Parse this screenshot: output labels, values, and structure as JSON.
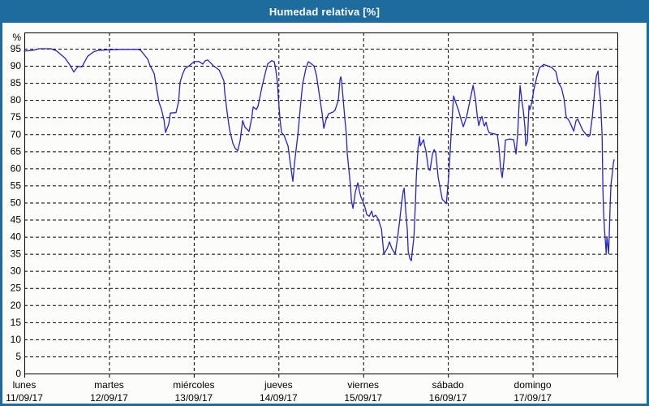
{
  "window": {
    "title": "Humedad relativa [%]"
  },
  "colors": {
    "frame": "#1e6b9e",
    "title_text": "#ffffff",
    "background": "#fcfdfb",
    "plot_background": "#fefefe",
    "plot_border": "#000000",
    "grid": "#000000",
    "axis_text": "#000000",
    "line": "#2323cc"
  },
  "chart_data": {
    "type": "line",
    "title": "Humedad relativa [%]",
    "ylabel": "%",
    "y_unit_label": "%",
    "ylim": [
      0,
      99.7
    ],
    "xlim_days": [
      0,
      7
    ],
    "grid": "dashed",
    "legend_position": "none",
    "y_ticks": [
      0,
      5,
      10,
      15,
      20,
      25,
      30,
      35,
      40,
      45,
      50,
      55,
      60,
      65,
      70,
      75,
      80,
      85,
      90,
      95
    ],
    "x_ticks": [
      {
        "day": "lunes",
        "date": "11/09/17"
      },
      {
        "day": "martes",
        "date": "12/09/17"
      },
      {
        "day": "miércoles",
        "date": "13/09/17"
      },
      {
        "day": "jueves",
        "date": "14/09/17"
      },
      {
        "day": "viernes",
        "date": "15/09/17"
      },
      {
        "day": "sábado",
        "date": "16/09/17"
      },
      {
        "day": "domingo",
        "date": "17/09/17"
      }
    ],
    "series": [
      {
        "name": "Humedad relativa",
        "color": "#2323cc",
        "points": [
          [
            0.0,
            94.3
          ],
          [
            0.096,
            94.5
          ],
          [
            0.172,
            95.0
          ],
          [
            0.316,
            95.0
          ],
          [
            0.383,
            94.3
          ],
          [
            0.479,
            92.3
          ],
          [
            0.536,
            90.3
          ],
          [
            0.584,
            88.2
          ],
          [
            0.632,
            89.8
          ],
          [
            0.68,
            89.7
          ],
          [
            0.747,
            92.8
          ],
          [
            0.824,
            94.2
          ],
          [
            0.872,
            94.5
          ],
          [
            0.996,
            94.7
          ],
          [
            1.149,
            94.8
          ],
          [
            1.341,
            94.8
          ],
          [
            1.37,
            94.6
          ],
          [
            1.456,
            92.0
          ],
          [
            1.485,
            90.0
          ],
          [
            1.533,
            87.7
          ],
          [
            1.561,
            83.5
          ],
          [
            1.59,
            79.3
          ],
          [
            1.619,
            77.2
          ],
          [
            1.648,
            74.2
          ],
          [
            1.667,
            70.5
          ],
          [
            1.705,
            73.0
          ],
          [
            1.724,
            76.2
          ],
          [
            1.791,
            76.3
          ],
          [
            1.82,
            79.5
          ],
          [
            1.839,
            85.2
          ],
          [
            1.868,
            87.6
          ],
          [
            1.897,
            89.2
          ],
          [
            1.944,
            90.0
          ],
          [
            2.002,
            91.2
          ],
          [
            2.059,
            91.3
          ],
          [
            2.107,
            90.5
          ],
          [
            2.136,
            91.5
          ],
          [
            2.165,
            91.7
          ],
          [
            2.232,
            90.0
          ],
          [
            2.299,
            88.8
          ],
          [
            2.328,
            87.2
          ],
          [
            2.356,
            85.6
          ],
          [
            2.366,
            82.0
          ],
          [
            2.395,
            76.2
          ],
          [
            2.423,
            71.3
          ],
          [
            2.462,
            67.3
          ],
          [
            2.49,
            65.8
          ],
          [
            2.519,
            65.2
          ],
          [
            2.548,
            68.2
          ],
          [
            2.577,
            74.0
          ],
          [
            2.605,
            72.0
          ],
          [
            2.634,
            71.3
          ],
          [
            2.653,
            70.8
          ],
          [
            2.682,
            74.5
          ],
          [
            2.701,
            78.0
          ],
          [
            2.739,
            77.2
          ],
          [
            2.759,
            78.2
          ],
          [
            2.807,
            84.0
          ],
          [
            2.845,
            88.0
          ],
          [
            2.874,
            90.6
          ],
          [
            2.921,
            91.5
          ],
          [
            2.95,
            91.2
          ],
          [
            2.969,
            88.8
          ],
          [
            2.989,
            84.8
          ],
          [
            2.998,
            80.8
          ],
          [
            3.017,
            74.5
          ],
          [
            3.036,
            70.5
          ],
          [
            3.065,
            69.7
          ],
          [
            3.113,
            66.5
          ],
          [
            3.142,
            61.0
          ],
          [
            3.17,
            56.2
          ],
          [
            3.19,
            61.7
          ],
          [
            3.228,
            69.7
          ],
          [
            3.257,
            77.6
          ],
          [
            3.285,
            84.7
          ],
          [
            3.324,
            89.2
          ],
          [
            3.352,
            91.2
          ],
          [
            3.381,
            90.7
          ],
          [
            3.419,
            90.0
          ],
          [
            3.448,
            87.2
          ],
          [
            3.477,
            82.4
          ],
          [
            3.515,
            76.0
          ],
          [
            3.534,
            71.7
          ],
          [
            3.563,
            74.4
          ],
          [
            3.592,
            76.0
          ],
          [
            3.64,
            76.4
          ],
          [
            3.668,
            77.0
          ],
          [
            3.707,
            80.0
          ],
          [
            3.726,
            86.0
          ],
          [
            3.736,
            86.8
          ],
          [
            3.745,
            85.5
          ],
          [
            3.764,
            80.0
          ],
          [
            3.783,
            74.5
          ],
          [
            3.802,
            69.7
          ],
          [
            3.812,
            64.2
          ],
          [
            3.831,
            59.5
          ],
          [
            3.85,
            54.7
          ],
          [
            3.86,
            50.8
          ],
          [
            3.879,
            48.3
          ],
          [
            3.908,
            53.2
          ],
          [
            3.937,
            55.8
          ],
          [
            3.956,
            53.2
          ],
          [
            3.975,
            51.5
          ],
          [
            4.004,
            50.0
          ],
          [
            4.023,
            48.4
          ],
          [
            4.042,
            46.5
          ],
          [
            4.071,
            46.0
          ],
          [
            4.1,
            47.5
          ],
          [
            4.119,
            45.8
          ],
          [
            4.148,
            46.3
          ],
          [
            4.176,
            45.2
          ],
          [
            4.215,
            42.3
          ],
          [
            4.243,
            35.0
          ],
          [
            4.282,
            36.5
          ],
          [
            4.31,
            38.5
          ],
          [
            4.339,
            36.5
          ],
          [
            4.377,
            35.0
          ],
          [
            4.406,
            39.7
          ],
          [
            4.425,
            43.6
          ],
          [
            4.454,
            50.0
          ],
          [
            4.473,
            53.4
          ],
          [
            4.483,
            54.2
          ],
          [
            4.502,
            47.6
          ],
          [
            4.521,
            42.0
          ],
          [
            4.531,
            35.7
          ],
          [
            4.55,
            33.7
          ],
          [
            4.569,
            33.0
          ],
          [
            4.579,
            35.7
          ],
          [
            4.598,
            39.7
          ],
          [
            4.617,
            50.0
          ],
          [
            4.626,
            57.0
          ],
          [
            4.646,
            65.8
          ],
          [
            4.665,
            69.3
          ],
          [
            4.674,
            66.6
          ],
          [
            4.713,
            68.4
          ],
          [
            4.722,
            67.0
          ],
          [
            4.741,
            65.0
          ],
          [
            4.77,
            59.8
          ],
          [
            4.789,
            59.4
          ],
          [
            4.818,
            64.2
          ],
          [
            4.837,
            65.5
          ],
          [
            4.856,
            64.6
          ],
          [
            4.885,
            57.4
          ],
          [
            4.933,
            51.0
          ],
          [
            4.962,
            50.2
          ],
          [
            4.981,
            49.7
          ],
          [
            5.01,
            58.0
          ],
          [
            5.038,
            70.0
          ],
          [
            5.067,
            81.2
          ],
          [
            5.096,
            79.0
          ],
          [
            5.125,
            77.0
          ],
          [
            5.153,
            74.5
          ],
          [
            5.182,
            72.2
          ],
          [
            5.22,
            75.0
          ],
          [
            5.249,
            78.5
          ],
          [
            5.278,
            82.0
          ],
          [
            5.297,
            84.3
          ],
          [
            5.326,
            80.0
          ],
          [
            5.345,
            75.5
          ],
          [
            5.364,
            72.5
          ],
          [
            5.383,
            74.2
          ],
          [
            5.402,
            75.2
          ],
          [
            5.421,
            73.0
          ],
          [
            5.431,
            72.4
          ],
          [
            5.45,
            73.5
          ],
          [
            5.469,
            71.5
          ],
          [
            5.488,
            70.4
          ],
          [
            5.526,
            70.2
          ],
          [
            5.565,
            70.0
          ],
          [
            5.584,
            69.8
          ],
          [
            5.603,
            66.0
          ],
          [
            5.622,
            60.0
          ],
          [
            5.641,
            57.3
          ],
          [
            5.66,
            62.0
          ],
          [
            5.679,
            68.3
          ],
          [
            5.727,
            68.6
          ],
          [
            5.775,
            68.4
          ],
          [
            5.804,
            64.2
          ],
          [
            5.823,
            70.0
          ],
          [
            5.842,
            80.0
          ],
          [
            5.852,
            84.2
          ],
          [
            5.871,
            80.2
          ],
          [
            5.89,
            76.8
          ],
          [
            5.909,
            72.0
          ],
          [
            5.919,
            66.6
          ],
          [
            5.938,
            68.0
          ],
          [
            5.957,
            78.4
          ],
          [
            5.967,
            77.2
          ],
          [
            5.986,
            78.8
          ],
          [
            6.015,
            83.1
          ],
          [
            6.053,
            87.1
          ],
          [
            6.082,
            89.5
          ],
          [
            6.111,
            90.0
          ],
          [
            6.13,
            90.4
          ],
          [
            6.178,
            90.0
          ],
          [
            6.226,
            89.5
          ],
          [
            6.274,
            88.3
          ],
          [
            6.303,
            85.1
          ],
          [
            6.341,
            83.5
          ],
          [
            6.37,
            80.4
          ],
          [
            6.398,
            74.8
          ],
          [
            6.418,
            74.4
          ],
          [
            6.437,
            73.6
          ],
          [
            6.466,
            72.0
          ],
          [
            6.485,
            70.9
          ],
          [
            6.513,
            74.0
          ],
          [
            6.533,
            74.4
          ],
          [
            6.561,
            72.8
          ],
          [
            6.59,
            71.2
          ],
          [
            6.628,
            70.0
          ],
          [
            6.657,
            69.3
          ],
          [
            6.676,
            69.7
          ],
          [
            6.705,
            75.2
          ],
          [
            6.734,
            83.1
          ],
          [
            6.753,
            87.1
          ],
          [
            6.772,
            88.5
          ],
          [
            6.782,
            84.3
          ],
          [
            6.801,
            80.0
          ],
          [
            6.82,
            69.7
          ],
          [
            6.83,
            53.8
          ],
          [
            6.839,
            45.9
          ],
          [
            6.849,
            42.0
          ],
          [
            6.858,
            38.8
          ],
          [
            6.868,
            35.2
          ],
          [
            6.877,
            40.0
          ],
          [
            6.897,
            35.0
          ],
          [
            6.906,
            42.0
          ],
          [
            6.916,
            50.0
          ],
          [
            6.925,
            55.4
          ],
          [
            6.944,
            59.4
          ],
          [
            6.954,
            61.8
          ],
          [
            6.963,
            62.5
          ]
        ]
      }
    ]
  }
}
